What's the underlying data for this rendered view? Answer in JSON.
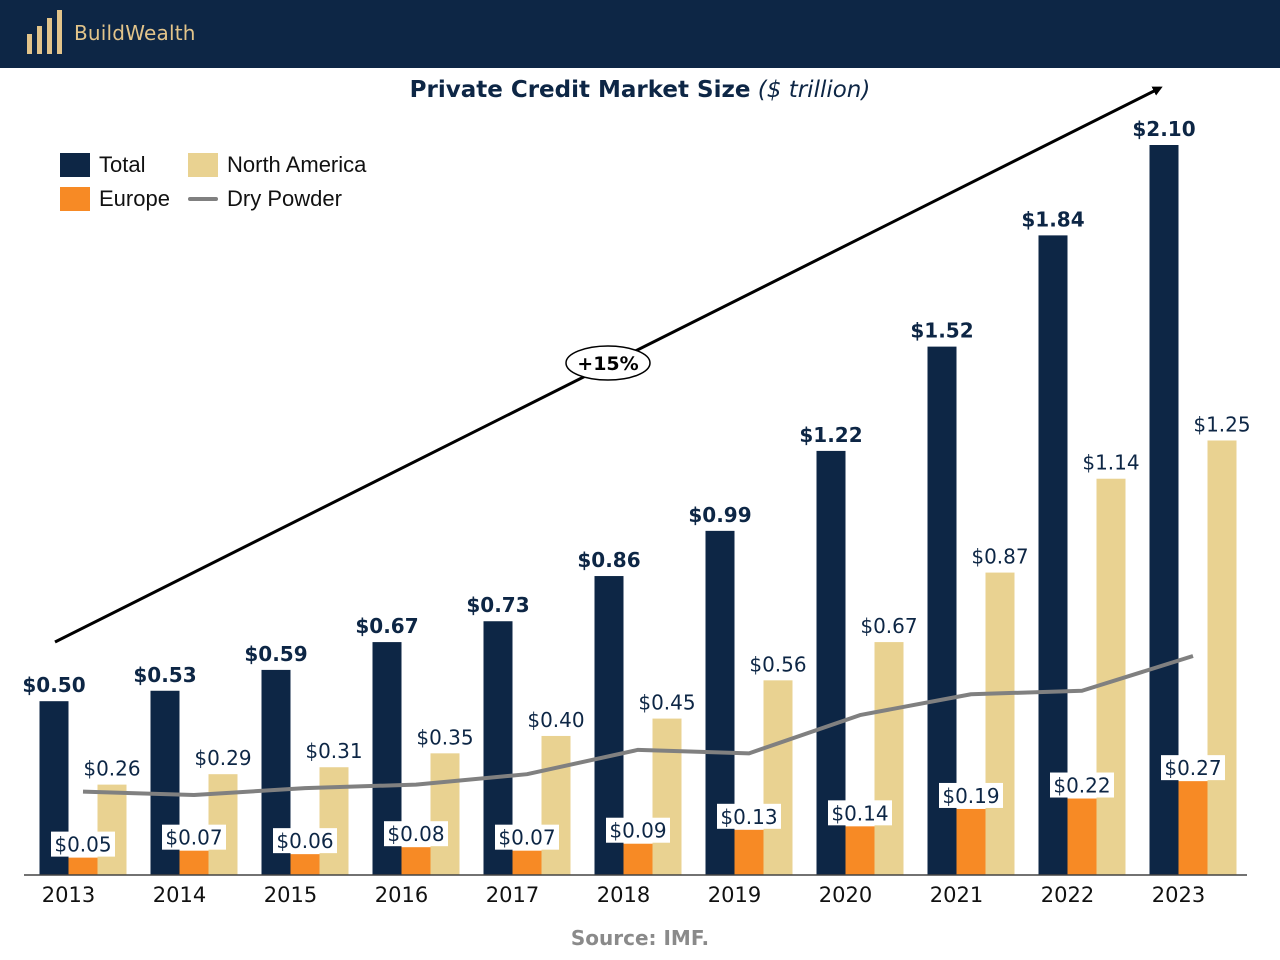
{
  "header": {
    "brand": "BuildWealth",
    "logo_icon": "bars-logo-icon"
  },
  "colors": {
    "total": "#0d2645",
    "europe": "#f78a25",
    "north_america": "#e9d291",
    "dry_powder": "#808080",
    "header_bg": "#0d2645",
    "brand_text": "#e2c48a"
  },
  "source": "Source: IMF.",
  "chart_data": {
    "type": "bar",
    "title": "Private Credit Market Size",
    "subtitle": "($ trillion)",
    "categories": [
      "2013",
      "2014",
      "2015",
      "2016",
      "2017",
      "2018",
      "2019",
      "2020",
      "2021",
      "2022",
      "2023"
    ],
    "series": [
      {
        "name": "Total",
        "values": [
          0.5,
          0.53,
          0.59,
          0.67,
          0.73,
          0.86,
          0.99,
          1.22,
          1.52,
          1.84,
          2.1
        ],
        "labels": [
          "$0.50",
          "$0.53",
          "$0.59",
          "$0.67",
          "$0.73",
          "$0.86",
          "$0.99",
          "$1.22",
          "$1.52",
          "$1.84",
          "$2.10"
        ]
      },
      {
        "name": "Europe",
        "values": [
          0.05,
          0.07,
          0.06,
          0.08,
          0.07,
          0.09,
          0.13,
          0.14,
          0.19,
          0.22,
          0.27
        ],
        "labels": [
          "$0.05",
          "$0.07",
          "$0.06",
          "$0.08",
          "$0.07",
          "$0.09",
          "$0.13",
          "$0.14",
          "$0.19",
          "$0.22",
          "$0.27"
        ]
      },
      {
        "name": "North America",
        "values": [
          0.26,
          0.29,
          0.31,
          0.35,
          0.4,
          0.45,
          0.56,
          0.67,
          0.87,
          1.14,
          1.25
        ],
        "labels": [
          "$0.26",
          "$0.29",
          "$0.31",
          "$0.35",
          "$0.40",
          "$0.45",
          "$0.56",
          "$0.67",
          "$0.87",
          "$1.14",
          "$1.25"
        ]
      },
      {
        "name": "Dry Powder",
        "type": "line",
        "values": [
          0.24,
          0.23,
          0.25,
          0.26,
          0.29,
          0.36,
          0.35,
          0.46,
          0.52,
          0.53,
          0.63
        ]
      }
    ],
    "ylim": [
      0,
      2.1
    ],
    "annotation": "+15%",
    "legend": "top-left"
  }
}
